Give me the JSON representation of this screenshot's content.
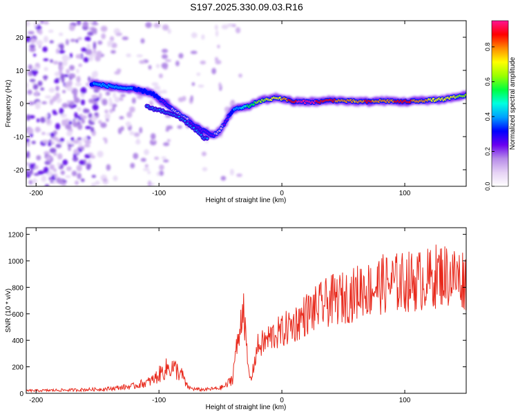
{
  "title": "S197.2025.330.09.03.R16",
  "chart_data": [
    {
      "type": "heatmap",
      "title": "S197.2025.330.09.03.R16",
      "xlabel": "Height of straight line (km)",
      "ylabel": "Frequency (Hz)",
      "xlim": [
        -208,
        150
      ],
      "ylim": [
        -25,
        25
      ],
      "xticks": [
        -200,
        -100,
        0,
        100
      ],
      "yticks": [
        -20,
        -10,
        0,
        10,
        20
      ],
      "colorbar": {
        "label": "Normalized spectral amplitude",
        "range": [
          0,
          0.95
        ],
        "ticks": [
          "0.0",
          "0.2",
          "0.4",
          "0.6",
          "0.8"
        ],
        "colors": [
          "#ffffff",
          "#e6d2f5",
          "#b78ce8",
          "#6a00f0",
          "#0000ff",
          "#00a0ff",
          "#00ffe0",
          "#00ff40",
          "#9aff00",
          "#ffff00",
          "#ff8c00",
          "#ff0000",
          "#ff1493"
        ]
      },
      "ridge": {
        "x": [
          -155,
          -145,
          -135,
          -125,
          -115,
          -105,
          -100,
          -95,
          -90,
          -85,
          -80,
          -75,
          -70,
          -65,
          -60,
          -55,
          -50,
          -45,
          -40,
          -35,
          -30,
          -25,
          -20,
          -15,
          -10,
          -5,
          0,
          10,
          20,
          30,
          40,
          50,
          60,
          70,
          80,
          90,
          100,
          110,
          120,
          130,
          140,
          150
        ],
        "y": [
          6,
          5.5,
          5,
          4.5,
          4,
          3,
          1.5,
          0,
          -1.5,
          -3,
          -4,
          -5.5,
          -7,
          -8,
          -9,
          -9.5,
          -8,
          -5,
          -2,
          -1.5,
          -1,
          -0.5,
          0.5,
          1,
          1.2,
          1.8,
          1.5,
          0.5,
          0.5,
          0.5,
          1,
          0.8,
          0.6,
          0.5,
          0.8,
          0.7,
          0.5,
          0.8,
          1,
          1.2,
          1.8,
          2.5
        ],
        "amplitude": [
          0.35,
          0.38,
          0.38,
          0.36,
          0.35,
          0.3,
          0.28,
          0.22,
          0.2,
          0.18,
          0.16,
          0.2,
          0.22,
          0.25,
          0.22,
          0.2,
          0.18,
          0.22,
          0.35,
          0.4,
          0.5,
          0.55,
          0.6,
          0.65,
          0.7,
          0.72,
          0.75,
          0.9,
          0.95,
          0.9,
          0.85,
          0.8,
          0.75,
          0.85,
          0.8,
          0.82,
          0.88,
          0.8,
          0.75,
          0.7,
          0.68,
          0.65
        ]
      },
      "secondary_branch": {
        "x": [
          -110,
          -100,
          -90,
          -80,
          -70,
          -65,
          -60
        ],
        "y": [
          -1,
          -2,
          -3,
          -5,
          -8,
          -10,
          -11
        ]
      }
    },
    {
      "type": "line",
      "xlabel": "Height of straight line (km)",
      "ylabel": "SNR (10 * v/v)",
      "xlim": [
        -208,
        150
      ],
      "ylim": [
        0,
        1250
      ],
      "xticks": [
        -200,
        -100,
        0,
        100
      ],
      "yticks": [
        0,
        200,
        400,
        600,
        800,
        1000,
        1200
      ],
      "color": "#e8291c",
      "series": [
        {
          "name": "SNR",
          "x": [
            -208,
            -200,
            -190,
            -180,
            -170,
            -160,
            -150,
            -140,
            -130,
            -120,
            -115,
            -110,
            -105,
            -100,
            -95,
            -90,
            -85,
            -80,
            -78,
            -75,
            -70,
            -65,
            -60,
            -55,
            -50,
            -45,
            -40,
            -38,
            -35,
            -33,
            -31,
            -30,
            -29,
            -28,
            -27,
            -25,
            -23,
            -21,
            -20,
            -15,
            -10,
            -5,
            0,
            5,
            10,
            15,
            20,
            25,
            30,
            40,
            50,
            60,
            65,
            70,
            80,
            90,
            100,
            110,
            120,
            128,
            130,
            140,
            150
          ],
          "y": [
            20,
            20,
            22,
            24,
            25,
            28,
            30,
            35,
            45,
            55,
            70,
            80,
            100,
            140,
            180,
            200,
            170,
            120,
            60,
            40,
            30,
            28,
            30,
            35,
            40,
            60,
            120,
            300,
            400,
            600,
            700,
            500,
            350,
            250,
            150,
            100,
            200,
            300,
            350,
            380,
            420,
            450,
            460,
            500,
            520,
            560,
            600,
            620,
            650,
            700,
            720,
            750,
            800,
            780,
            820,
            830,
            840,
            850,
            860,
            900,
            900,
            880,
            860
          ]
        }
      ]
    }
  ]
}
